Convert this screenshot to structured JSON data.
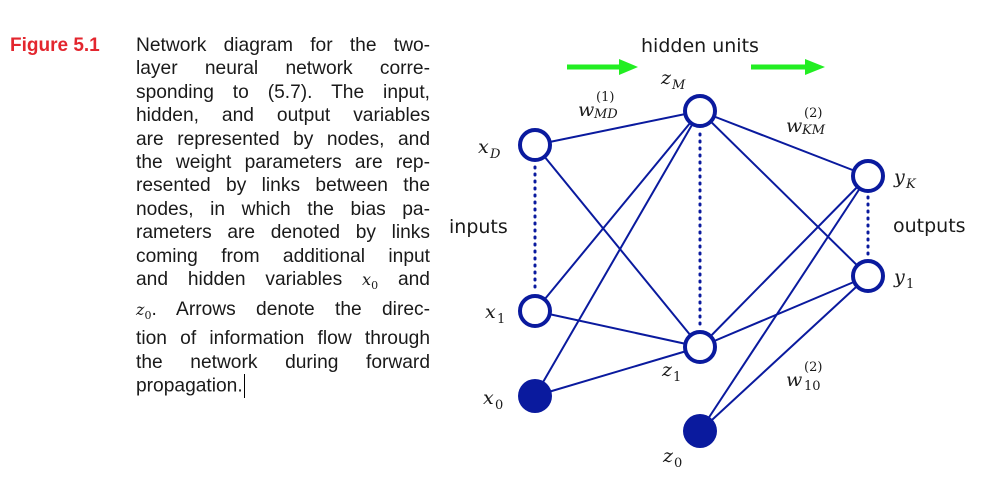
{
  "figure": {
    "label": "Figure 5.1",
    "caption_lines": [
      "Network diagram for the two-",
      "layer neural network corre-",
      "sponding to (5.7). The input,",
      "hidden, and output variables",
      "are represented by nodes, and",
      "the weight parameters are rep-",
      "resented by links between the",
      "nodes, in which the bias pa-",
      "rameters are denoted by links",
      "coming from additional input",
      "and hidden variables"
    ],
    "caption_tail": {
      "x0": "x",
      "x0_sub": "0",
      "and": "and",
      "z0": "z",
      "z0_sub": "0",
      "line12_rest": ".  Arrows denote the direc-",
      "line13": "tion of information flow through",
      "line14": "the network during forward",
      "line15": "propagation."
    }
  },
  "diagram": {
    "hidden_units_label": "hidden units",
    "inputs_label": "inputs",
    "outputs_label": "outputs",
    "nodes": {
      "xD": {
        "base": "x",
        "sub": "D"
      },
      "x1": {
        "base": "x",
        "sub": "1"
      },
      "x0": {
        "base": "x",
        "sub": "0"
      },
      "zM": {
        "base": "z",
        "sub": "M"
      },
      "z1": {
        "base": "z",
        "sub": "1"
      },
      "z0": {
        "base": "z",
        "sub": "0"
      },
      "yK": {
        "base": "y",
        "sub": "K"
      },
      "y1": {
        "base": "y",
        "sub": "1"
      }
    },
    "weights": {
      "wMD": {
        "base": "w",
        "sup": "(1)",
        "sub": "MD"
      },
      "wKM": {
        "base": "w",
        "sup": "(2)",
        "sub": "KM"
      },
      "w10": {
        "base": "w",
        "sup": "(2)",
        "sub": "10"
      }
    },
    "colors": {
      "node": "#0a1a9e",
      "arrow": "#22ee22",
      "caption_label": "#e3262e"
    }
  }
}
